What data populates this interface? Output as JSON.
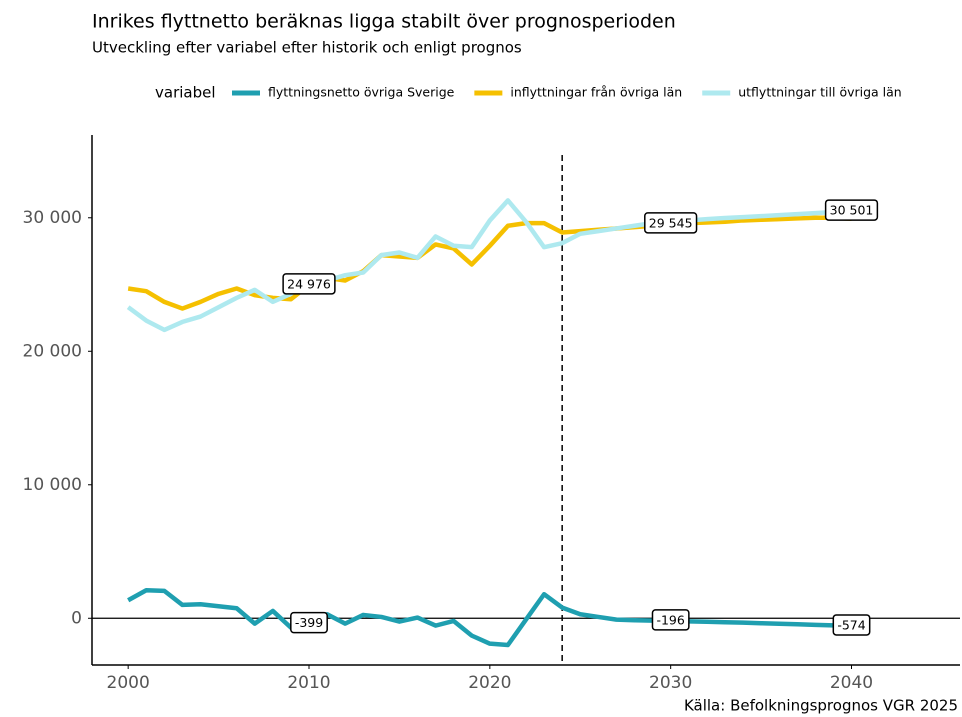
{
  "chart_data": {
    "type": "line",
    "title": "Inrikes flyttnetto beräknas ligga stabilt över prognosperioden",
    "subtitle": "Utveckling efter variabel efter historik och enligt prognos",
    "legend_title": "variabel",
    "caption": "Källa: Befolkningsprognos VGR 2025",
    "x": [
      2000,
      2001,
      2002,
      2003,
      2004,
      2005,
      2006,
      2007,
      2008,
      2009,
      2010,
      2011,
      2012,
      2013,
      2014,
      2015,
      2016,
      2017,
      2018,
      2019,
      2020,
      2021,
      2022,
      2023,
      2024,
      2025,
      2026,
      2027,
      2028,
      2029,
      2030,
      2031,
      2032,
      2033,
      2034,
      2035,
      2036,
      2037,
      2038,
      2039,
      2040
    ],
    "series": [
      {
        "name": "flyttningsnetto övriga Sverige",
        "color": "#1f9fb0",
        "values": [
          1350,
          2100,
          2050,
          1000,
          1050,
          900,
          750,
          -400,
          550,
          -700,
          -399,
          300,
          -400,
          250,
          100,
          -250,
          50,
          -550,
          -200,
          -1300,
          -1900,
          -2000,
          -100,
          1800,
          800,
          300,
          100,
          -100,
          -150,
          -180,
          -196,
          -230,
          -260,
          -300,
          -330,
          -370,
          -410,
          -450,
          -490,
          -530,
          -574
        ],
        "value_labels": [
          null,
          null,
          null,
          null,
          null,
          null,
          null,
          null,
          null,
          null,
          "-399",
          null,
          null,
          null,
          null,
          null,
          null,
          null,
          null,
          null,
          null,
          null,
          null,
          null,
          null,
          null,
          null,
          null,
          null,
          null,
          "-196",
          null,
          null,
          null,
          null,
          null,
          null,
          null,
          null,
          null,
          "-574"
        ]
      },
      {
        "name": "inflyttningar från övriga län",
        "color": "#f5c000",
        "values": [
          24700,
          24500,
          23700,
          23200,
          23700,
          24300,
          24700,
          24200,
          24000,
          23900,
          24976,
          25500,
          25300,
          26000,
          27200,
          27100,
          27000,
          28000,
          27700,
          26500,
          27900,
          29400,
          29600,
          29600,
          28900,
          29000,
          29100,
          29200,
          29300,
          29400,
          29545,
          29600,
          29650,
          29700,
          29800,
          29850,
          29900,
          29950,
          30000,
          30000,
          29927
        ],
        "value_labels": [
          null,
          null,
          null,
          null,
          null,
          null,
          null,
          null,
          null,
          null,
          "24 976",
          null,
          null,
          null,
          null,
          null,
          null,
          null,
          null,
          null,
          null,
          null,
          null,
          null,
          null,
          null,
          null,
          null,
          null,
          null,
          "29 545",
          null,
          null,
          null,
          null,
          null,
          null,
          null,
          null,
          null,
          null
        ]
      },
      {
        "name": "utflyttningar till övriga län",
        "color": "#aee9ef",
        "values": [
          23300,
          22300,
          21600,
          22200,
          22600,
          23300,
          24000,
          24600,
          23700,
          24300,
          25375,
          25300,
          25700,
          25900,
          27200,
          27400,
          27000,
          28600,
          27900,
          27800,
          29800,
          31300,
          29700,
          27800,
          28100,
          28800,
          29000,
          29200,
          29400,
          29600,
          29741,
          29800,
          29900,
          29980,
          30050,
          30120,
          30200,
          30270,
          30350,
          30430,
          30501
        ],
        "value_labels": [
          null,
          null,
          null,
          null,
          null,
          null,
          null,
          null,
          null,
          null,
          null,
          null,
          null,
          null,
          null,
          null,
          null,
          null,
          null,
          null,
          null,
          null,
          null,
          null,
          null,
          null,
          null,
          null,
          null,
          null,
          null,
          null,
          null,
          null,
          null,
          null,
          null,
          null,
          null,
          null,
          "30 501"
        ]
      }
    ],
    "xlim": [
      1998,
      2046
    ],
    "ylim": [
      -3500,
      36200
    ],
    "xticks": [
      2000,
      2010,
      2020,
      2030,
      2040
    ],
    "yticks": [
      0,
      {
        "value": 10000,
        "label": "10 000"
      },
      {
        "value": 20000,
        "label": "20 000"
      },
      {
        "value": 30000,
        "label": "30 000"
      }
    ],
    "vline": 2024,
    "hline": 0,
    "grid": false
  }
}
